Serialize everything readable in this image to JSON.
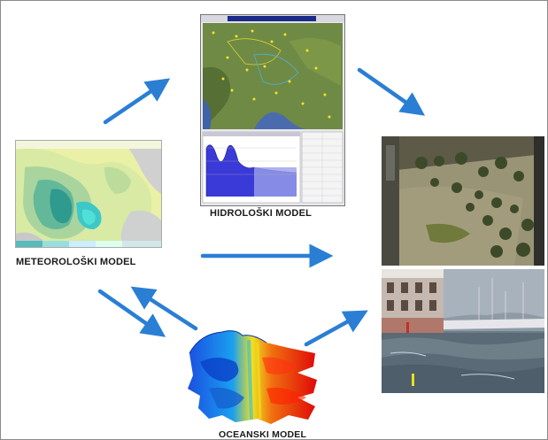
{
  "labels": {
    "hydro": "HIDROLOŠKI MODEL",
    "meteo": "METEOROLOŠKI MODEL",
    "ocean": "OCEANSKI MODEL"
  },
  "colors": {
    "arrow": "#2a7fd4",
    "hydro_graph_fill": "#3a3ad8",
    "map_green": "#6e8a3c",
    "ocean_red": "#e01010",
    "ocean_blue": "#1060e0"
  },
  "icons": {
    "hydro_screenshot": "hydrological-map-screenshot",
    "meteo_map": "precipitation-map",
    "ocean_model": "ocean-surge-model",
    "flood_photo": "flooded-town-photo",
    "surge_photo": "harbor-storm-surge-photo"
  }
}
